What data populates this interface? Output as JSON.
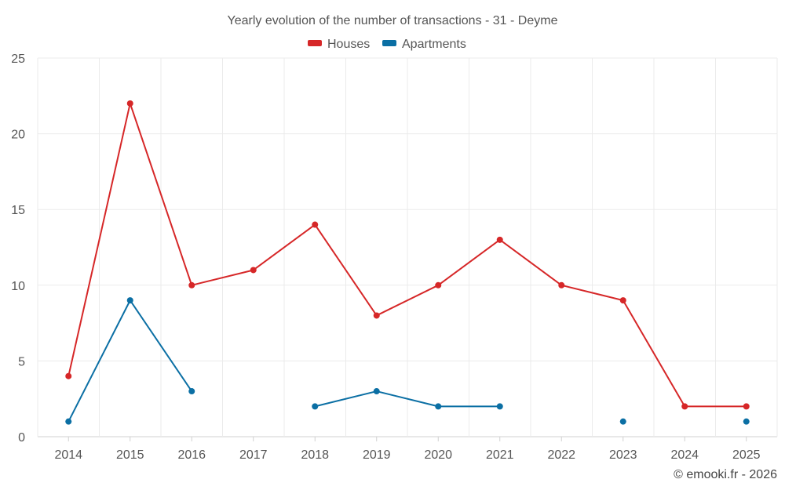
{
  "chart_data": {
    "type": "line",
    "title": "Yearly evolution of the number of transactions - 31 - Deyme",
    "categories": [
      "2014",
      "2015",
      "2016",
      "2017",
      "2018",
      "2019",
      "2020",
      "2021",
      "2022",
      "2023",
      "2024",
      "2025"
    ],
    "series": [
      {
        "name": "Houses",
        "color": "#d62728",
        "values": [
          4,
          22,
          10,
          11,
          14,
          8,
          10,
          13,
          10,
          9,
          2,
          2
        ]
      },
      {
        "name": "Apartments",
        "color": "#0b6fa4",
        "values": [
          1,
          9,
          3,
          null,
          2,
          3,
          2,
          2,
          null,
          1,
          null,
          1
        ]
      }
    ],
    "ylim": [
      0,
      25
    ],
    "yticks": [
      0,
      5,
      10,
      15,
      20,
      25
    ],
    "xlabel": "",
    "ylabel": "",
    "grid": true,
    "legend": "top-center"
  },
  "credit": "© emooki.fr - 2026"
}
